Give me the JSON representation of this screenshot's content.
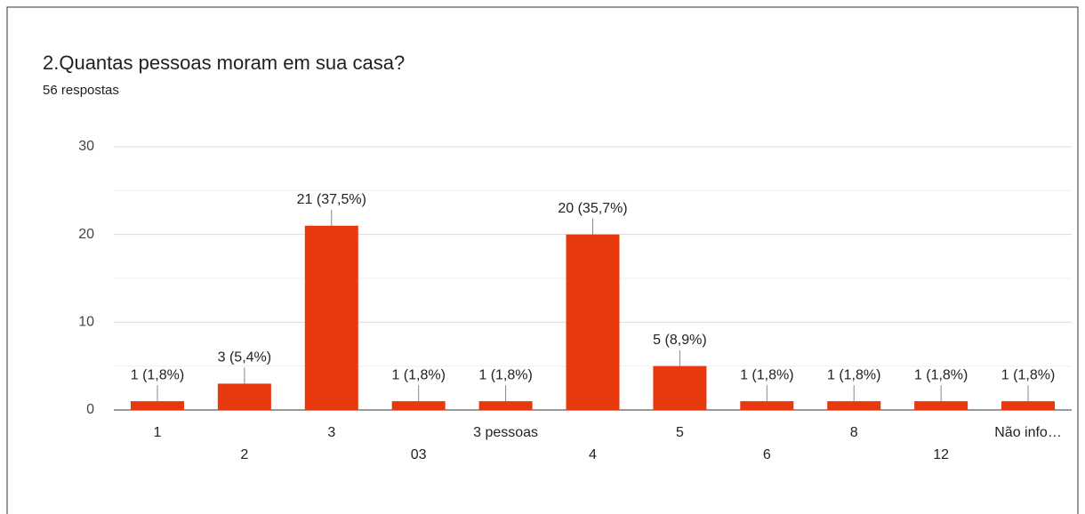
{
  "chart_data": {
    "type": "bar",
    "title": "2.Quantas pessoas moram em sua casa?",
    "subtitle": "56 respostas",
    "categories": [
      "1",
      "2",
      "3",
      "03",
      "3 pessoas",
      "4",
      "5",
      "6",
      "8",
      "12",
      "Não info…"
    ],
    "values": [
      1,
      3,
      21,
      1,
      1,
      20,
      5,
      1,
      1,
      1,
      1
    ],
    "value_labels": [
      "1 (1,8%)",
      "3 (5,4%)",
      "21 (37,5%)",
      "1 (1,8%)",
      "1 (1,8%)",
      "20 (35,7%)",
      "5 (8,9%)",
      "1 (1,8%)",
      "1 (1,8%)",
      "1 (1,8%)",
      "1 (1,8%)"
    ],
    "color": "#e8380d",
    "ylim": [
      0,
      30
    ],
    "yticks": [
      0,
      10,
      20,
      30
    ],
    "minor_yticks": [
      5,
      15,
      25
    ],
    "grid": true
  }
}
